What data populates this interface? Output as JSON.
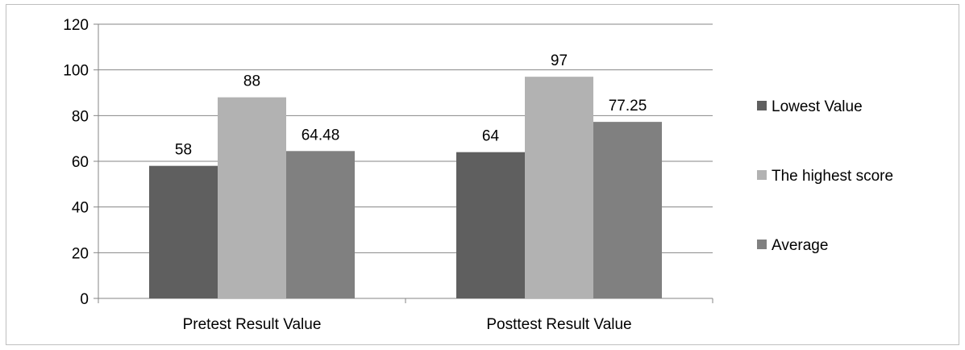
{
  "chart_data": {
    "type": "bar",
    "categories": [
      "Pretest Result Value",
      "Posttest Result Value"
    ],
    "series": [
      {
        "name": "Lowest Value",
        "values": [
          58,
          64
        ],
        "labels": [
          "58",
          "64"
        ],
        "color": "#5f5f5f"
      },
      {
        "name": "The highest score",
        "values": [
          88,
          97
        ],
        "labels": [
          "88",
          "97"
        ],
        "color": "#b2b2b2"
      },
      {
        "name": "Average",
        "values": [
          64.48,
          77.25
        ],
        "labels": [
          "64.48",
          "77.25"
        ],
        "color": "#808080"
      }
    ],
    "yticks": [
      "0",
      "20",
      "40",
      "60",
      "80",
      "100",
      "120"
    ],
    "ylim": [
      0,
      120
    ],
    "grid": true,
    "legend_position": "right",
    "title": "",
    "xlabel": "",
    "ylabel": ""
  }
}
